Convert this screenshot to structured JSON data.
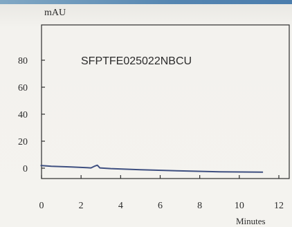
{
  "chart_data": {
    "type": "line",
    "title": "",
    "annotation": "SFPTFE025022NBCU",
    "ylabel": "mAU",
    "xlabel": "Minutes",
    "xlim": [
      0,
      12
    ],
    "ylim": [
      -3,
      100
    ],
    "x_ticks": [
      "0",
      "2",
      "4",
      "6",
      "8",
      "10",
      "12"
    ],
    "y_ticks": [
      "0",
      "20",
      "40",
      "60",
      "80"
    ],
    "grid": false,
    "series": [
      {
        "color": "#3e4f80",
        "x": [
          -0.05,
          0.5,
          1.5,
          2.5,
          2.7,
          2.82,
          2.95,
          3.5,
          5,
          7,
          9,
          11.2
        ],
        "y": [
          2.0,
          1.4,
          0.9,
          0.2,
          1.6,
          2.2,
          0.2,
          -0.3,
          -1.2,
          -2.0,
          -2.7,
          -3.0
        ]
      }
    ]
  }
}
